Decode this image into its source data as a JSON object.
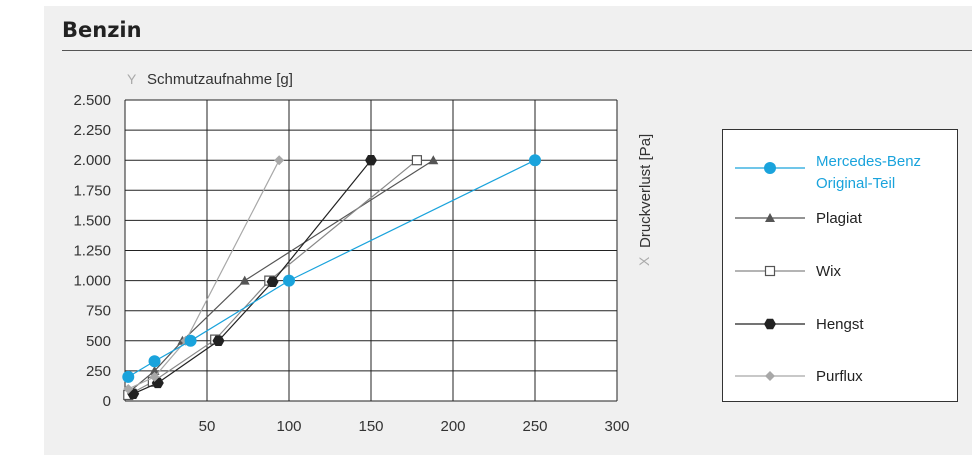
{
  "title": "Benzin",
  "chart_data": {
    "type": "line",
    "title": "Benzin",
    "ylabel": "Schmutzaufnahme [g]",
    "xlabel": "Druckverlust [Pa]",
    "y_axis_letter": "Y",
    "x_axis_letter": "X",
    "xlim": [
      0,
      300
    ],
    "ylim": [
      0,
      2500
    ],
    "x_ticks": [
      50,
      100,
      150,
      200,
      250,
      300
    ],
    "x_tick_labels": [
      "50",
      "100",
      "150",
      "200",
      "250",
      "300"
    ],
    "y_ticks": [
      0,
      250,
      500,
      750,
      1000,
      1250,
      1500,
      1750,
      2000,
      2250,
      2500
    ],
    "y_tick_labels": [
      "0",
      "250",
      "500",
      "750",
      "1.000",
      "1.250",
      "1.500",
      "1.750",
      "2.000",
      "2.250",
      "2.500"
    ],
    "grid": true,
    "legend_position": "right",
    "series": [
      {
        "name": "Mercedes-Benz Original-Teil",
        "name_lines": [
          "Mercedes-Benz",
          "Original-Teil"
        ],
        "color": "#1aa3dc",
        "marker": "circle",
        "points": [
          [
            2,
            200
          ],
          [
            18,
            330
          ],
          [
            40,
            500
          ],
          [
            100,
            1000
          ],
          [
            250,
            2000
          ]
        ]
      },
      {
        "name": "Plagiat",
        "color": "#555555",
        "marker": "triangle",
        "points": [
          [
            3,
            80
          ],
          [
            18,
            250
          ],
          [
            35,
            500
          ],
          [
            73,
            1000
          ],
          [
            188,
            2000
          ]
        ]
      },
      {
        "name": "Wix",
        "color": "#888888",
        "marker": "square-open",
        "points": [
          [
            2,
            50
          ],
          [
            17,
            160
          ],
          [
            55,
            510
          ],
          [
            88,
            1000
          ],
          [
            178,
            2000
          ]
        ]
      },
      {
        "name": "Hengst",
        "color": "#222222",
        "marker": "hexagon",
        "points": [
          [
            5,
            60
          ],
          [
            20,
            150
          ],
          [
            57,
            500
          ],
          [
            90,
            990
          ],
          [
            150,
            2000
          ]
        ]
      },
      {
        "name": "Purflux",
        "color": "#a8a8a8",
        "marker": "diamond",
        "points": [
          [
            2,
            100
          ],
          [
            18,
            200
          ],
          [
            37,
            500
          ],
          [
            94,
            2000
          ]
        ]
      }
    ]
  }
}
